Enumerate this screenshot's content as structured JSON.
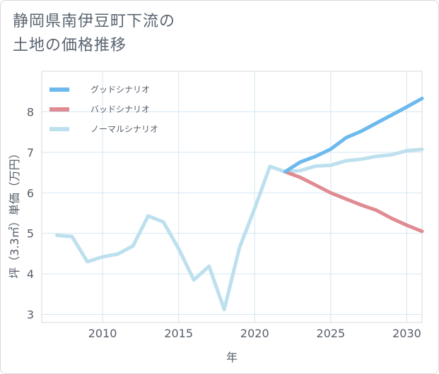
{
  "title": {
    "line1": "静岡県南伊豆町下流の",
    "line2": "土地の価格推移"
  },
  "chart_data": {
    "type": "line",
    "xlabel": "年",
    "ylabel": "坪（3.3㎡）単価（万円）",
    "xlim": [
      2006,
      2031
    ],
    "ylim": [
      2.8,
      9.0
    ],
    "x_ticks": [
      2010,
      2015,
      2020,
      2025,
      2030
    ],
    "y_ticks": [
      3,
      4,
      5,
      6,
      7,
      8
    ],
    "legend_position": "top-left",
    "series": [
      {
        "name": "グッドシナリオ",
        "color": "#6cb9ee",
        "x": [
          2022,
          2023,
          2024,
          2025,
          2026,
          2027,
          2028,
          2029,
          2030,
          2031
        ],
        "y": [
          6.52,
          6.76,
          6.9,
          7.08,
          7.36,
          7.52,
          7.72,
          7.92,
          8.12,
          8.33
        ]
      },
      {
        "name": "バッドシナリオ",
        "color": "#e08b91",
        "x": [
          2022,
          2023,
          2024,
          2025,
          2026,
          2027,
          2028,
          2029,
          2030,
          2031
        ],
        "y": [
          6.52,
          6.38,
          6.19,
          6.0,
          5.85,
          5.7,
          5.57,
          5.37,
          5.2,
          5.05
        ]
      },
      {
        "name": "ノーマルシナリオ",
        "color": "#bde0ee",
        "x": [
          2007,
          2008,
          2009,
          2010,
          2011,
          2012,
          2013,
          2014,
          2015,
          2016,
          2017,
          2018,
          2019,
          2020,
          2021,
          2022,
          2023,
          2024,
          2025,
          2026,
          2027,
          2028,
          2029,
          2030,
          2031
        ],
        "y": [
          4.95,
          4.92,
          4.3,
          4.42,
          4.49,
          4.69,
          5.43,
          5.28,
          4.62,
          3.85,
          4.19,
          3.12,
          4.65,
          5.62,
          6.65,
          6.52,
          6.55,
          6.66,
          6.68,
          6.79,
          6.83,
          6.9,
          6.94,
          7.04,
          7.07
        ]
      }
    ]
  }
}
